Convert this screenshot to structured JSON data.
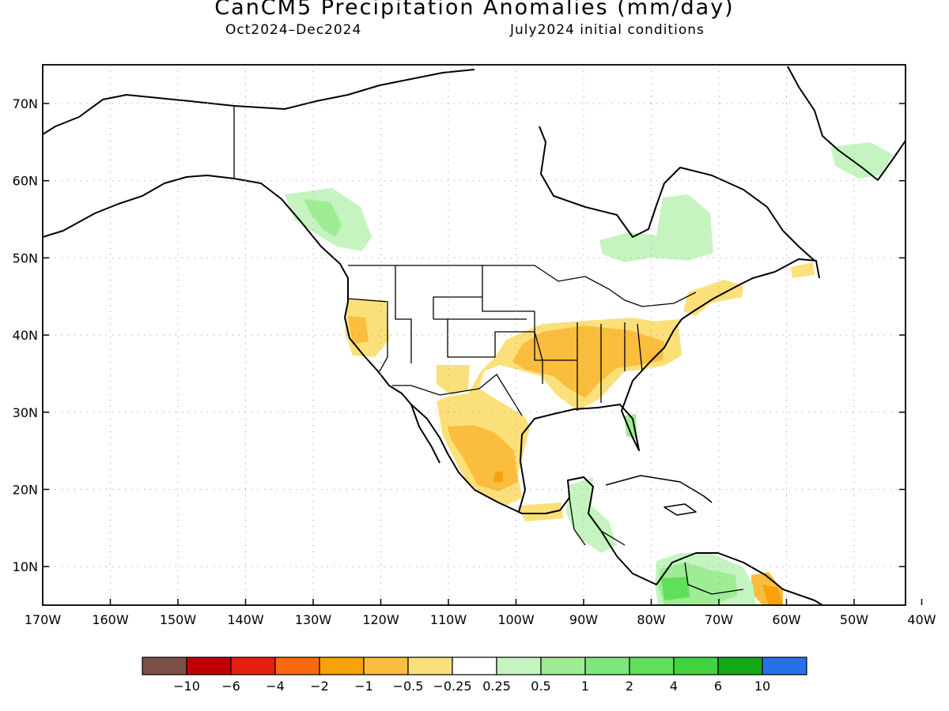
{
  "title": "CanCM5 Precipitation Anomalies (mm/day)",
  "period": "Oct2024–Dec2024",
  "initial_conditions": "July2024 initial conditions",
  "lat_labels": [
    "70N",
    "60N",
    "50N",
    "40N",
    "30N",
    "20N",
    "10N"
  ],
  "lon_labels": [
    "170W",
    "160W",
    "150W",
    "140W",
    "130W",
    "120W",
    "110W",
    "100W",
    "90W",
    "80W",
    "70W",
    "60W",
    "50W",
    "40W"
  ],
  "colorbar": {
    "colors": [
      "#7a5046",
      "#c00000",
      "#e51f10",
      "#fa6a0a",
      "#f9a10b",
      "#fbbd3e",
      "#fbe07a",
      "#ffffff",
      "#c5f4c0",
      "#9eec94",
      "#7de77a",
      "#5ee05a",
      "#3fd43f",
      "#13a816",
      "#2770e8"
    ],
    "labels": [
      "−10",
      "−6",
      "−4",
      "−2",
      "−1",
      "−0.5",
      "−0.25",
      "0.25",
      "0.5",
      "1",
      "2",
      "4",
      "6",
      "10"
    ]
  }
}
